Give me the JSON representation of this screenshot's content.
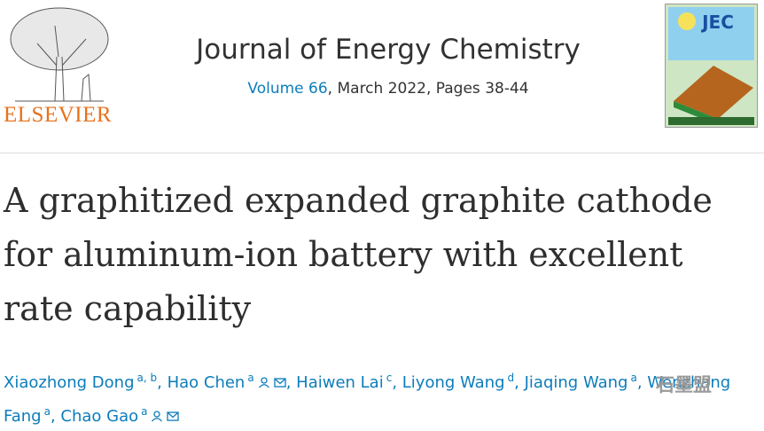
{
  "publisher": {
    "name": "ELSEVIER"
  },
  "journal": {
    "title": "Journal of Energy Chemistry",
    "volume": "Volume 66",
    "details": ", March 2022, Pages 38-44",
    "cover_label": "JEC"
  },
  "article": {
    "title": "A graphitized expanded graphite cathode for aluminum-ion battery with excellent rate capability",
    "authors": [
      {
        "name": "Xiaozhong Dong",
        "affiliation": "a, b",
        "corresponding": false
      },
      {
        "name": "Hao Chen",
        "affiliation": "a",
        "corresponding": true
      },
      {
        "name": "Haiwen Lai",
        "affiliation": "c",
        "corresponding": false
      },
      {
        "name": "Liyong Wang",
        "affiliation": "d",
        "corresponding": false
      },
      {
        "name": "Jiaqing Wang",
        "affiliation": "a",
        "corresponding": false
      },
      {
        "name": "Wenzhang Fang",
        "affiliation": "a",
        "corresponding": false
      },
      {
        "name": "Chao Gao",
        "affiliation": "a",
        "corresponding": true
      }
    ]
  },
  "watermark": {
    "text": "石墨盟"
  }
}
